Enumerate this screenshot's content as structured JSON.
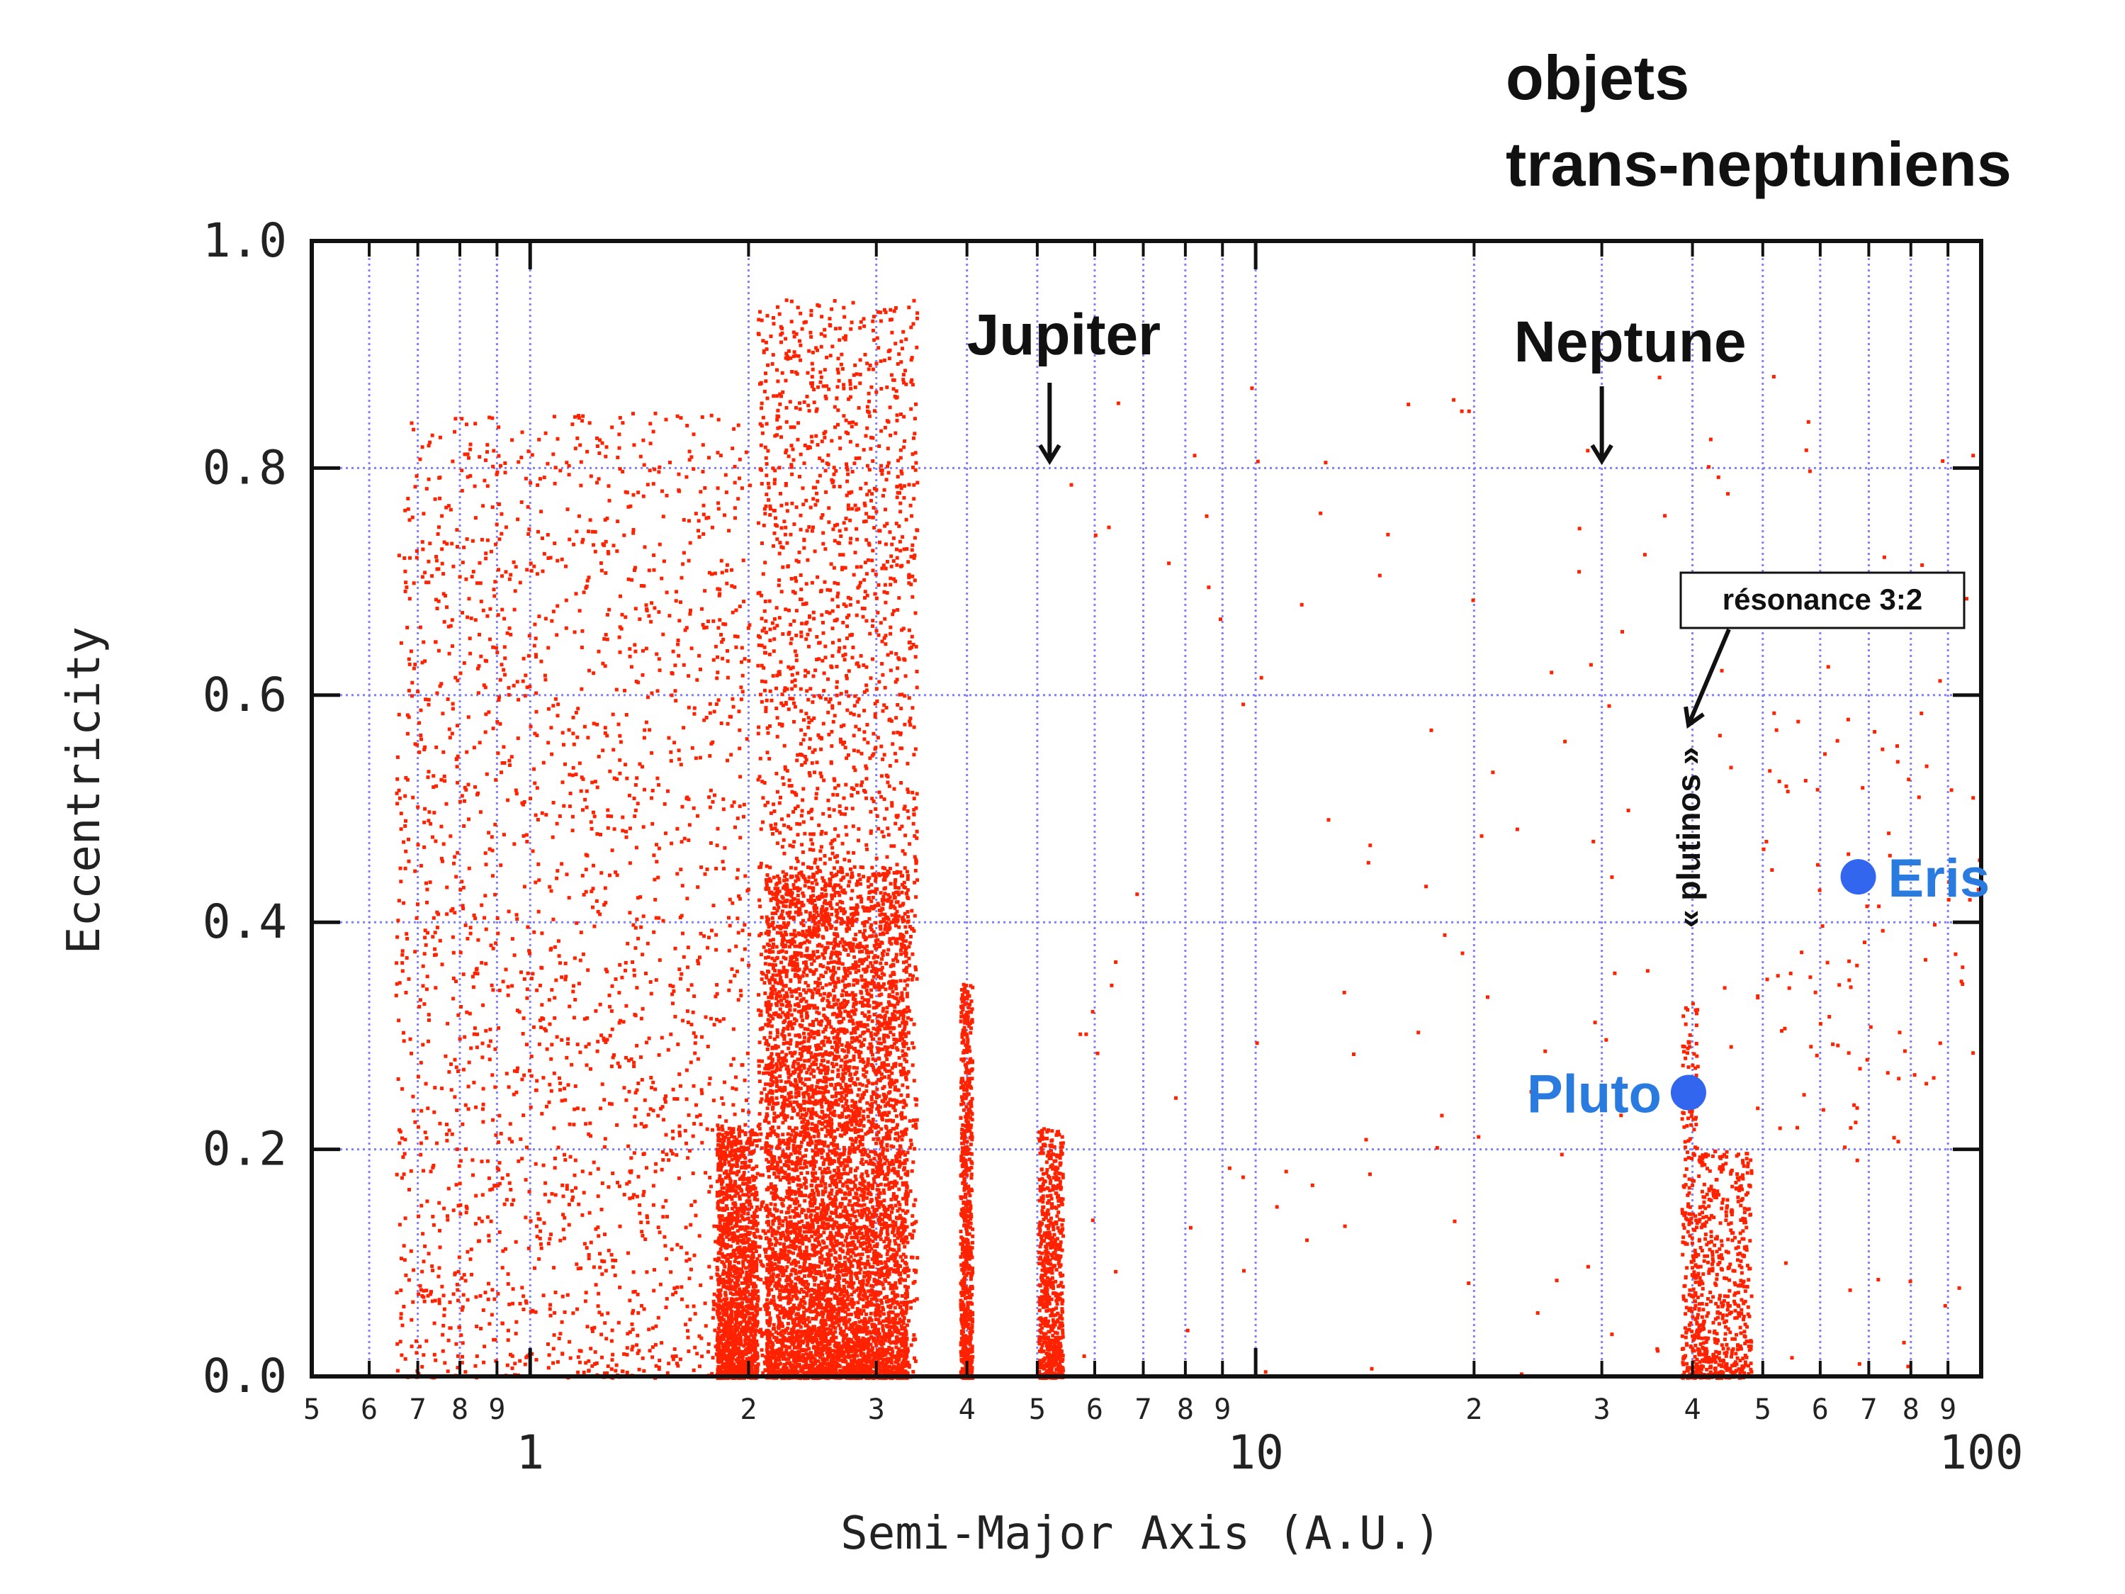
{
  "chart_data": {
    "type": "scatter",
    "title": "objets trans-neptuniens",
    "title_lines": [
      "objets",
      "trans-neptuniens"
    ],
    "xlabel": "Semi-Major Axis (A.U.)",
    "ylabel": "Eccentricity",
    "x_scale": "log",
    "xlim": [
      0.5,
      100
    ],
    "ylim": [
      0.0,
      1.0
    ],
    "grid": true,
    "x_major_ticks": [
      {
        "value": 1,
        "label": "1"
      },
      {
        "value": 10,
        "label": "10"
      },
      {
        "value": 100,
        "label": "100"
      }
    ],
    "x_minor_ticks": [
      {
        "value": 0.5,
        "label": "5"
      },
      {
        "value": 0.6,
        "label": "6"
      },
      {
        "value": 0.7,
        "label": "7"
      },
      {
        "value": 0.8,
        "label": "8"
      },
      {
        "value": 0.9,
        "label": "9"
      },
      {
        "value": 2,
        "label": "2"
      },
      {
        "value": 3,
        "label": "3"
      },
      {
        "value": 4,
        "label": "4"
      },
      {
        "value": 5,
        "label": "5"
      },
      {
        "value": 6,
        "label": "6"
      },
      {
        "value": 7,
        "label": "7"
      },
      {
        "value": 8,
        "label": "8"
      },
      {
        "value": 9,
        "label": "9"
      },
      {
        "value": 20,
        "label": "2"
      },
      {
        "value": 30,
        "label": "3"
      },
      {
        "value": 40,
        "label": "4"
      },
      {
        "value": 50,
        "label": "5"
      },
      {
        "value": 60,
        "label": "6"
      },
      {
        "value": 70,
        "label": "7"
      },
      {
        "value": 80,
        "label": "8"
      },
      {
        "value": 90,
        "label": "9"
      }
    ],
    "y_ticks": [
      {
        "value": 0.0,
        "label": "0.0"
      },
      {
        "value": 0.2,
        "label": "0.2"
      },
      {
        "value": 0.4,
        "label": "0.4"
      },
      {
        "value": 0.6,
        "label": "0.6"
      },
      {
        "value": 0.8,
        "label": "0.8"
      },
      {
        "value": 1.0,
        "label": "1.0"
      }
    ],
    "series": [
      {
        "name": "",
        "color": "#ff2200",
        "clusters": [
          {
            "x_min": 0.65,
            "x_max": 2.0,
            "e_min": 0.0,
            "e_max": 0.85,
            "count": 2200,
            "density": "sparse"
          },
          {
            "x_min": 1.8,
            "x_max": 2.05,
            "e_min": 0.0,
            "e_max": 0.22,
            "count": 1500,
            "density": "dense"
          },
          {
            "x_min": 2.05,
            "x_max": 3.4,
            "e_min": 0.0,
            "e_max": 0.95,
            "count": 2600,
            "density": "sparse"
          },
          {
            "x_min": 2.1,
            "x_max": 3.3,
            "e_min": 0.0,
            "e_max": 0.45,
            "count": 9000,
            "density": "dense"
          },
          {
            "x_min": 3.9,
            "x_max": 4.05,
            "e_min": 0.0,
            "e_max": 0.35,
            "count": 700,
            "density": "dense"
          },
          {
            "x_min": 5.0,
            "x_max": 5.4,
            "e_min": 0.0,
            "e_max": 0.22,
            "count": 700,
            "density": "dense"
          },
          {
            "x_min": 5.5,
            "x_max": 100,
            "e_min": 0.0,
            "e_max": 0.9,
            "count": 160,
            "density": "sparse"
          },
          {
            "x_min": 38.5,
            "x_max": 40.5,
            "e_min": 0.0,
            "e_max": 0.33,
            "count": 260,
            "density": "dense"
          },
          {
            "x_min": 40.5,
            "x_max": 48,
            "e_min": 0.0,
            "e_max": 0.2,
            "count": 550,
            "density": "dense"
          },
          {
            "x_min": 48,
            "x_max": 100,
            "e_min": 0.2,
            "e_max": 0.6,
            "count": 80,
            "density": "sparse"
          }
        ]
      }
    ],
    "highlighted_points": [
      {
        "name": "Pluto",
        "x": 39.5,
        "y": 0.25,
        "color": "#3366ee",
        "label_color": "#2a7be0"
      },
      {
        "name": "Eris",
        "x": 67.7,
        "y": 0.44,
        "color": "#3366ee",
        "label_color": "#2a7be0"
      }
    ],
    "annotations": [
      {
        "text": "Jupiter",
        "arrow_to": {
          "x": 5.2,
          "y": 0.8
        }
      },
      {
        "text": "Neptune",
        "arrow_to": {
          "x": 30,
          "y": 0.8
        }
      },
      {
        "text": "résonance 3:2",
        "boxed": true,
        "arrow_to": {
          "x": 39.5,
          "y": 0.58
        }
      },
      {
        "text": "« plutinos »",
        "vertical": true,
        "at": {
          "x": 39.5,
          "y": 0.42
        }
      }
    ],
    "colors": {
      "points": "#ff2200",
      "grid": "#8080ff",
      "axis": "#111111",
      "highlight": "#3366ee",
      "highlight_label": "#2a7be0"
    }
  }
}
